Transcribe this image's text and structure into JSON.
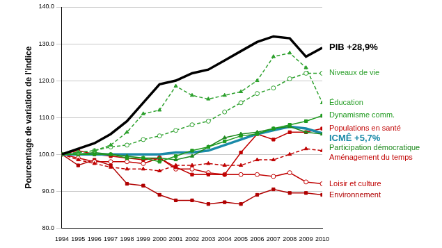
{
  "chart_data": {
    "type": "line",
    "y_label": "Pourcentage de variation de l'indice",
    "categories": [
      "1994",
      "1995",
      "1996",
      "1997",
      "1998",
      "1999",
      "2000",
      "2001",
      "2002",
      "2003",
      "2004",
      "2005",
      "2006",
      "2007",
      "2008",
      "2009",
      "2010"
    ],
    "ylim": [
      80,
      140
    ],
    "yticks": [
      {
        "value": 80,
        "label": "80.0"
      },
      {
        "value": 90,
        "label": "90.0"
      },
      {
        "value": 100,
        "label": "100.0"
      },
      {
        "value": 110,
        "label": "110.0"
      },
      {
        "value": 120,
        "label": "120.0"
      },
      {
        "value": 130,
        "label": "130.0"
      },
      {
        "value": 140,
        "label": "140.0"
      }
    ],
    "grid": true,
    "series": [
      {
        "name": "PIB +28,9%",
        "color": "#000000",
        "marker": "none",
        "line_style": "solid",
        "values": [
          100,
          101.5,
          103,
          105.5,
          109,
          114,
          119,
          120,
          122,
          123,
          125.5,
          128,
          130.5,
          132,
          131.5,
          126.5,
          128.9
        ]
      },
      {
        "name": "Éducation",
        "color": "#2ca02c",
        "marker": "triangle",
        "line_style": "dashed",
        "values": [
          100,
          100.5,
          101,
          102.5,
          106,
          111,
          112,
          118.5,
          116,
          115,
          116,
          117,
          120,
          126.5,
          127.5,
          123.5,
          114
        ]
      },
      {
        "name": "Niveaux de vie",
        "color": "#2ca02c",
        "marker": "circle",
        "line_style": "dashed",
        "values": [
          100,
          100.5,
          101,
          102,
          102.5,
          104,
          105,
          106.5,
          108,
          109,
          111.5,
          114,
          116.5,
          118,
          120.5,
          122,
          122
        ]
      },
      {
        "name": "Dynamisme comm.",
        "color": "#1e9a1e",
        "marker": "square",
        "line_style": "solid",
        "values": [
          100,
          100,
          100,
          100,
          99,
          99,
          98,
          99.5,
          101,
          102,
          103.5,
          105,
          105.5,
          107,
          108,
          109,
          110.5
        ]
      },
      {
        "name": "Participation démocratique",
        "color": "#1e8a1e",
        "marker": "triangle",
        "line_style": "solid",
        "values": [
          100,
          100,
          100.5,
          100,
          99.5,
          99,
          99,
          98.5,
          99.5,
          102,
          104.5,
          105.5,
          106,
          107,
          107.5,
          106,
          105.5
        ]
      },
      {
        "name": "ICMÊ +5,7%",
        "color": "#1a8aa8",
        "marker": "none",
        "line_style": "solid",
        "values": [
          100,
          100,
          100,
          100,
          100,
          100,
          100,
          100.5,
          100.5,
          101,
          102.5,
          104,
          105.5,
          106.5,
          107.5,
          107,
          105.7
        ]
      },
      {
        "name": "Populations en santé",
        "color": "#c00000",
        "marker": "square",
        "line_style": "solid",
        "values": [
          100,
          101,
          100,
          99.5,
          99,
          98.5,
          99,
          96.5,
          94.5,
          94.5,
          94.5,
          100.5,
          105.5,
          104,
          106,
          106,
          107
        ]
      },
      {
        "name": "Aménagement du temps",
        "color": "#c00000",
        "marker": "triangle",
        "line_style": "dashed",
        "values": [
          100,
          98.5,
          97.5,
          96.5,
          96,
          96,
          95.5,
          97,
          97,
          97.5,
          97,
          97,
          98.5,
          98.5,
          100,
          101.5,
          101
        ]
      },
      {
        "name": "Loisir et culture",
        "color": "#c00000",
        "marker": "circle",
        "line_style": "solid",
        "values": [
          100,
          99,
          98,
          98,
          98,
          97.5,
          99,
          96,
          96,
          95,
          94.5,
          94.5,
          94.5,
          94,
          95,
          92.5,
          92
        ]
      },
      {
        "name": "Environnement",
        "color": "#b00000",
        "marker": "square",
        "line_style": "solid",
        "values": [
          100,
          97,
          98.5,
          97,
          92,
          91.5,
          89,
          87.5,
          87.5,
          86.5,
          87,
          86.5,
          89,
          90.5,
          89.5,
          89.5,
          89
        ]
      }
    ]
  }
}
